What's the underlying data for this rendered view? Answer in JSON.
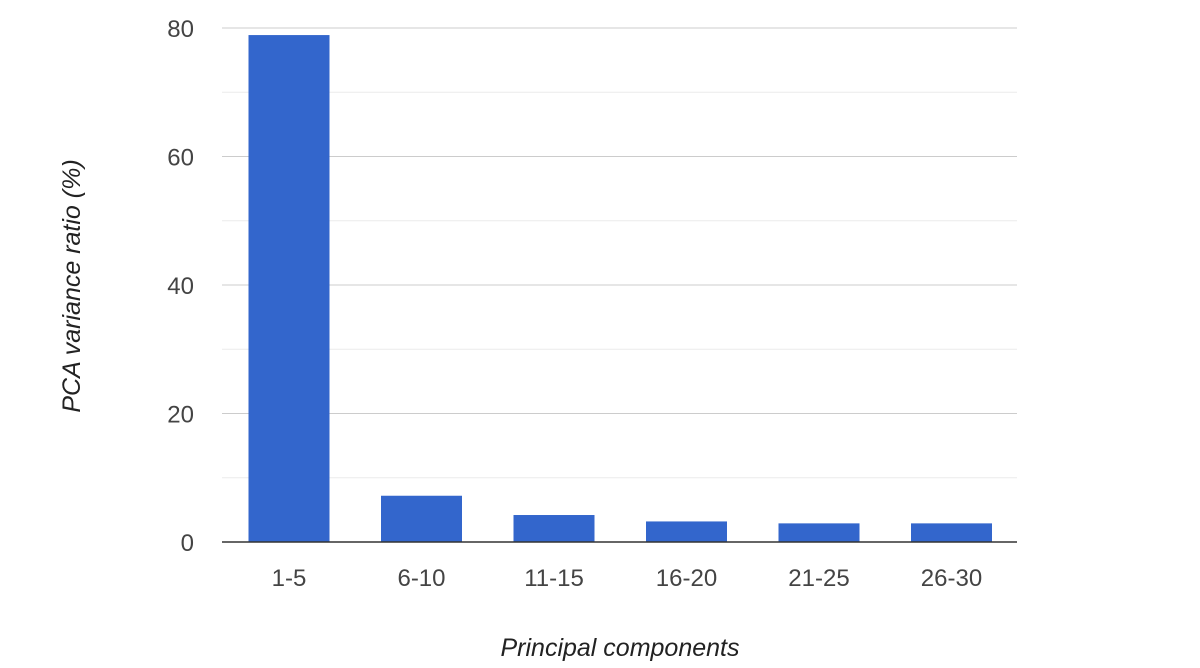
{
  "chart_data": {
    "type": "bar",
    "title": "",
    "xlabel": "Principal components",
    "ylabel": "PCA variance ratio (%)",
    "categories": [
      "1-5",
      "6-10",
      "11-15",
      "16-20",
      "21-25",
      "26-30"
    ],
    "values": [
      78.9,
      7.2,
      4.2,
      3.2,
      2.9,
      2.9
    ],
    "ylim": [
      0,
      80
    ],
    "yticks": [
      "0",
      "20",
      "40",
      "60",
      "80"
    ],
    "grid": true,
    "legend": "none",
    "colors": {
      "bar": "#3366cc",
      "gridline": "#cccccc",
      "minor_gridline": "#ebebeb",
      "baseline": "#333333"
    }
  }
}
